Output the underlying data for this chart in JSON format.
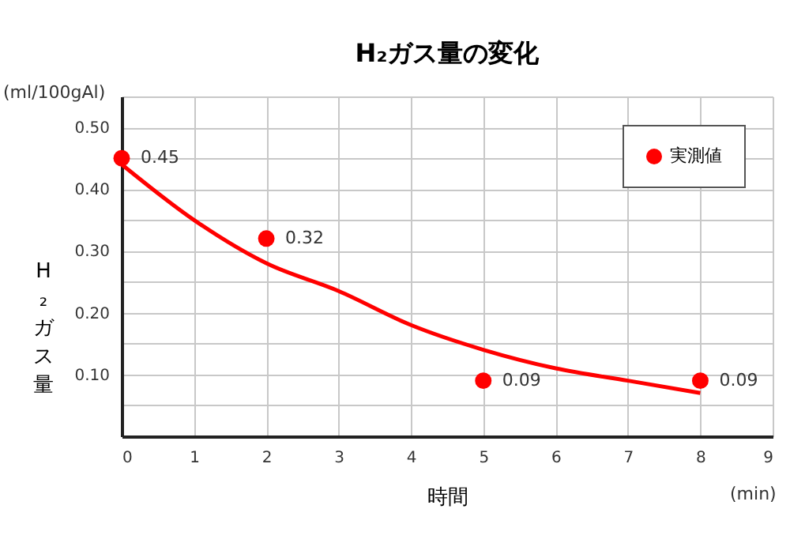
{
  "chart_data": {
    "type": "scatter",
    "title": "H₂ガス量の変化",
    "xlabel": "時間",
    "ylabel": "H₂ガス量",
    "annotations": [
      "(ml/100gAl)",
      "(min)"
    ],
    "xlim": [
      0,
      9
    ],
    "xticks": [
      0,
      1,
      2,
      3,
      4,
      5,
      6,
      7,
      8,
      9
    ],
    "ylim": [
      0,
      0.55
    ],
    "yticks": [
      {
        "value": 0,
        "label": null
      },
      {
        "value": 0.05,
        "label": null
      },
      {
        "value": 0.1,
        "label": "0.10"
      },
      {
        "value": 0.15,
        "label": null
      },
      {
        "value": 0.2,
        "label": "0.20"
      },
      {
        "value": 0.25,
        "label": null
      },
      {
        "value": 0.3,
        "label": "0.30"
      },
      {
        "value": 0.35,
        "label": null
      },
      {
        "value": 0.4,
        "label": "0.40"
      },
      {
        "value": 0.45,
        "label": null
      },
      {
        "value": 0.5,
        "label": "0.50"
      },
      {
        "value": 0.55,
        "label": null
      }
    ],
    "grid": true,
    "legend": "top right",
    "series": [
      {
        "type": "line",
        "color": "#ff0000",
        "x": [
          0,
          1,
          2,
          3,
          4,
          5,
          6,
          7,
          8
        ],
        "values": [
          0.44,
          0.35,
          0.28,
          0.235,
          0.18,
          0.14,
          0.11,
          0.09,
          0.07
        ],
        "marker": "none",
        "line_style": "solid"
      },
      {
        "type": "scatter",
        "name": "実測値",
        "color": "#ff0000",
        "x": [
          0,
          2,
          5,
          8
        ],
        "values": [
          0.45,
          0.32,
          0.09,
          0.09
        ],
        "marker": "circle",
        "value_labels": [
          "0.45",
          "0.32",
          "0.09",
          "0.09"
        ]
      }
    ]
  }
}
